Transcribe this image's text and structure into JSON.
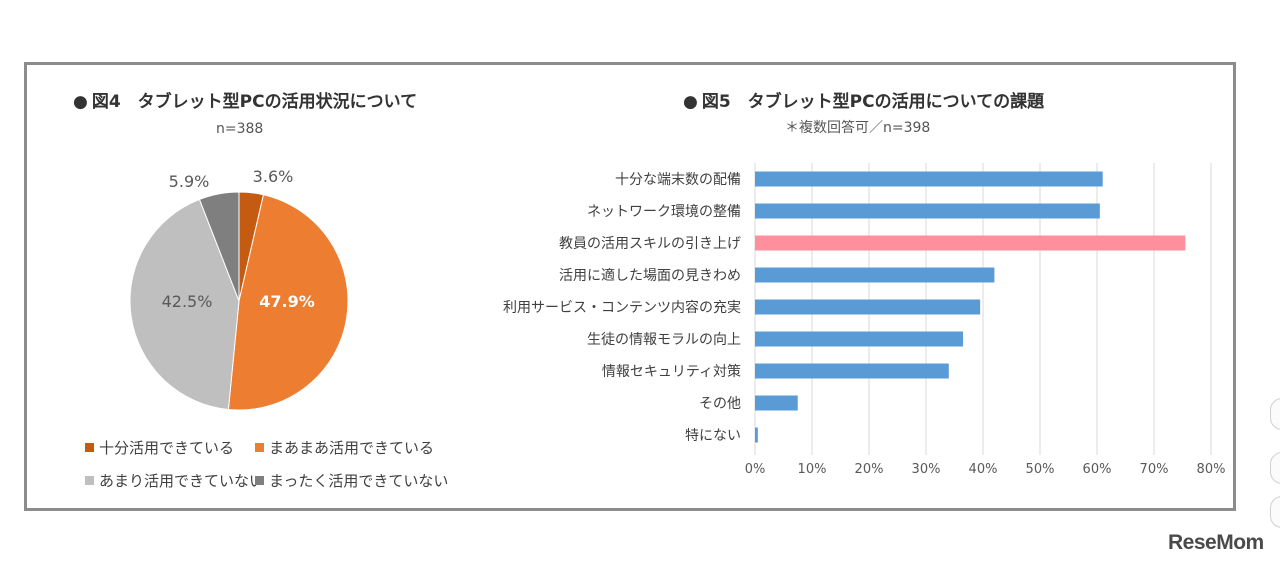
{
  "logo_text": "ReseMom",
  "colors": {
    "dark_orange": "#c55a11",
    "orange": "#ed7d31",
    "light_gray": "#bfbfbf",
    "dark_gray": "#7f7f7f",
    "bar_blue": "#5b9bd5",
    "bar_pink": "#ff8f9c"
  },
  "chart_data": [
    {
      "type": "pie",
      "title": "図4　タブレット型PCの活用状況について",
      "subtitle": "n=388",
      "bullet": "●",
      "slices": [
        {
          "label": "十分活用できている",
          "value": 3.6,
          "display": "3.6%",
          "color": "#c55a11"
        },
        {
          "label": "まあまあ活用できている",
          "value": 47.9,
          "display": "47.9%",
          "color": "#ed7d31"
        },
        {
          "label": "あまり活用できていない",
          "value": 42.5,
          "display": "42.5%",
          "color": "#bfbfbf"
        },
        {
          "label": "まったく活用できていない",
          "value": 5.9,
          "display": "5.9%",
          "color": "#7f7f7f"
        }
      ],
      "legend_position": "bottom"
    },
    {
      "type": "bar",
      "orientation": "horizontal",
      "title": "図5　タブレット型PCの活用についての課題",
      "subtitle": "＊複数回答可／n=398",
      "bullet": "●",
      "categories": [
        "十分な端末数の配備",
        "ネットワーク環境の整備",
        "教員の活用スキルの引き上げ",
        "活用に適した場面の見きわめ",
        "利用サービス・コンテンツ内容の充実",
        "生徒の情報モラルの向上",
        "情報セキュリティ対策",
        "その他",
        "特にない"
      ],
      "values": [
        61,
        60.5,
        75.5,
        42,
        39.5,
        36.5,
        34,
        7.5,
        0.5
      ],
      "highlight_index": 2,
      "xlim": [
        0,
        80
      ],
      "xticks": [
        "0%",
        "10%",
        "20%",
        "30%",
        "40%",
        "50%",
        "60%",
        "70%",
        "80%"
      ],
      "grid": true
    }
  ]
}
